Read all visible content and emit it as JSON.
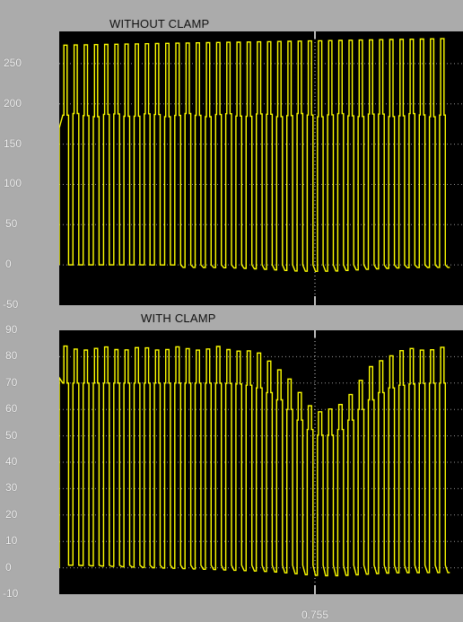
{
  "chart_data": [
    {
      "type": "line",
      "title": "WITHOUT CLAMP",
      "xlabel": "",
      "ylabel": "",
      "ylim": [
        -50,
        290
      ],
      "y_ticks": [
        -50,
        0,
        50,
        100,
        150,
        200,
        250
      ],
      "x_tick_labels": [],
      "grid": true,
      "line_color": "#ffff00",
      "series": [
        {
          "waveform": "pulse-train",
          "pulses": 38,
          "peak_start": 273,
          "peak_end": 281,
          "shoulder": 186,
          "base_low": 0,
          "base_dip": -8
        }
      ]
    },
    {
      "type": "line",
      "title": "WITH CLAMP",
      "xlabel": "",
      "ylabel": "",
      "ylim": [
        -10,
        90
      ],
      "y_ticks": [
        -10,
        0,
        10,
        20,
        30,
        40,
        50,
        60,
        70,
        80,
        90
      ],
      "x_tick_labels": [
        "0.755"
      ],
      "grid": true,
      "line_color": "#ffff00",
      "series": [
        {
          "waveform": "pulse-train",
          "pulses": 38,
          "peak_high": 84,
          "peak_sag": 60,
          "shoulder_high": 70,
          "shoulder_sag": 50,
          "base_low": 1,
          "base_dip": -3
        }
      ]
    }
  ]
}
